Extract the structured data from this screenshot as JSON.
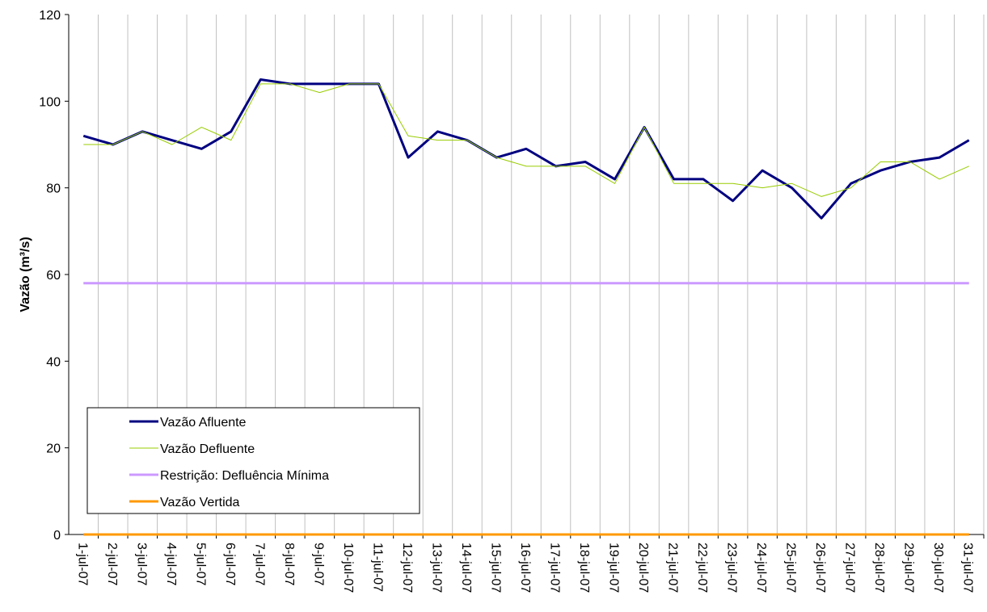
{
  "chart_data": {
    "type": "line",
    "y_label": "Vazão (m³/s)",
    "categories": [
      "1-jul-07",
      "2-jul-07",
      "3-jul-07",
      "4-jul-07",
      "5-jul-07",
      "6-jul-07",
      "7-jul-07",
      "8-jul-07",
      "9-jul-07",
      "10-jul-07",
      "11-jul-07",
      "12-jul-07",
      "13-jul-07",
      "14-jul-07",
      "15-jul-07",
      "16-jul-07",
      "17-jul-07",
      "18-jul-07",
      "19-jul-07",
      "20-jul-07",
      "21-jul-07",
      "22-jul-07",
      "23-jul-07",
      "24-jul-07",
      "25-jul-07",
      "26-jul-07",
      "27-jul-07",
      "28-jul-07",
      "29-jul-07",
      "30-jul-07",
      "31-jul-07"
    ],
    "series": [
      {
        "name": "Vazão Afluente",
        "color": "#000080",
        "width": 3,
        "values": [
          92,
          90,
          93,
          91,
          89,
          93,
          105,
          104,
          104,
          104,
          104,
          87,
          93,
          91,
          87,
          89,
          85,
          86,
          82,
          94,
          82,
          82,
          77,
          84,
          80,
          73,
          81,
          84,
          86,
          87,
          91
        ]
      },
      {
        "name": "Vazão Defluente",
        "color": "#99cc00",
        "width": 1,
        "values": [
          90,
          90,
          93,
          90,
          94,
          91,
          104,
          104,
          102,
          104,
          104,
          92,
          91,
          91,
          87,
          85,
          85,
          85,
          81,
          94,
          81,
          81,
          81,
          80,
          81,
          78,
          80,
          86,
          86,
          82,
          85
        ]
      },
      {
        "name": "Restrição: Defluência Mínima",
        "color": "#cc99ff",
        "width": 3,
        "values": [
          58,
          58,
          58,
          58,
          58,
          58,
          58,
          58,
          58,
          58,
          58,
          58,
          58,
          58,
          58,
          58,
          58,
          58,
          58,
          58,
          58,
          58,
          58,
          58,
          58,
          58,
          58,
          58,
          58,
          58,
          58
        ]
      },
      {
        "name": "Vazão Vertida",
        "color": "#ff9900",
        "width": 3,
        "values": [
          0,
          0,
          0,
          0,
          0,
          0,
          0,
          0,
          0,
          0,
          0,
          0,
          0,
          0,
          0,
          0,
          0,
          0,
          0,
          0,
          0,
          0,
          0,
          0,
          0,
          0,
          0,
          0,
          0,
          0,
          0
        ]
      }
    ],
    "ylim": [
      0,
      120
    ],
    "yticks": [
      0,
      20,
      40,
      60,
      80,
      100,
      120
    ],
    "vertical_grid": true
  }
}
